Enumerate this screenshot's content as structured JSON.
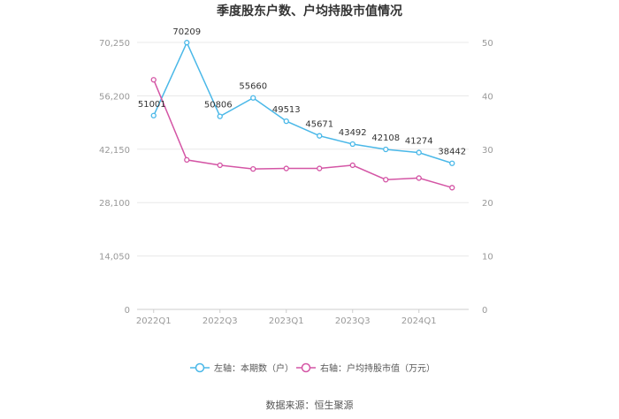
{
  "chart_data": {
    "type": "line",
    "title": "季度股东户数、户均持股市值情况",
    "categories": [
      "2022Q1",
      "2022Q2",
      "2022Q3",
      "2022Q4",
      "2023Q1",
      "2023Q2",
      "2023Q3",
      "2023Q4",
      "2024Q1",
      "2024Q2"
    ],
    "x_tick_labels": [
      "2022Q1",
      "2022Q3",
      "2023Q1",
      "2023Q3",
      "2024Q1"
    ],
    "left_axis": {
      "ticks": [
        "0",
        "14,050",
        "28,100",
        "42,150",
        "56,200",
        "70,250"
      ],
      "ylim": [
        0,
        70250
      ]
    },
    "right_axis": {
      "ticks": [
        "0",
        "10",
        "20",
        "30",
        "40",
        "50"
      ],
      "ylim": [
        0,
        50
      ]
    },
    "series": [
      {
        "name": "左轴：本期数（户）",
        "axis": "left",
        "color": "#4ab8e8",
        "values": [
          51001,
          70209,
          50806,
          55660,
          49513,
          45671,
          43492,
          42108,
          41274,
          38442
        ],
        "labels": [
          "51001",
          "70209",
          "50806",
          "55660",
          "49513",
          "45671",
          "43492",
          "42108",
          "41274",
          "38442"
        ]
      },
      {
        "name": "右轴：户均持股市值（万元）",
        "axis": "right",
        "color": "#d455a5",
        "values": [
          43.0,
          28.0,
          27.0,
          26.3,
          26.4,
          26.4,
          27.0,
          24.3,
          24.6,
          22.8
        ]
      }
    ],
    "legend_position": "bottom",
    "grid": true
  },
  "source": "数据来源：恒生聚源"
}
